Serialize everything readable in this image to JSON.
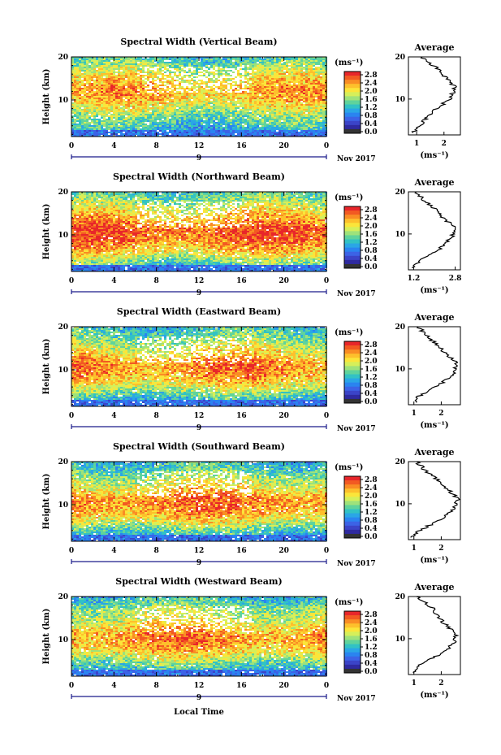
{
  "figure": {
    "date_label": "Nov 2017",
    "day_label": "9",
    "xlabel": "Local Time"
  },
  "colorbar": {
    "unit": "(ms⁻¹)",
    "ticks": [
      "2.8",
      "2.4",
      "2.0",
      "1.6",
      "1.2",
      "0.8",
      "0.4",
      "0.0"
    ],
    "colors": [
      "#e8262a",
      "#f25a22",
      "#f98d24",
      "#fdc02c",
      "#fbe53a",
      "#d6ef5a",
      "#9ee27b",
      "#5fd39c",
      "#32c2c4",
      "#2aa6e6",
      "#2a84f0",
      "#3c63e6",
      "#3b44c8",
      "#2f2aa0",
      "#333333"
    ]
  },
  "chart_data": [
    {
      "type": "heatmap",
      "title": "Spectral Width (Vertical Beam)",
      "ylabel": "Height (km)",
      "x_ticks": [
        "0",
        "4",
        "8",
        "12",
        "16",
        "20",
        "0"
      ],
      "xlim": [
        0,
        24
      ],
      "y_ticks": [
        "20",
        "10"
      ],
      "ylim": [
        1.5,
        20
      ],
      "colorbar_ticks": [
        2.8,
        2.4,
        2.0,
        1.6,
        1.2,
        0.8,
        0.4,
        0.0
      ],
      "profile": {
        "title": "Average",
        "xlabel": "(ms⁻¹)",
        "x_ticks": [
          "1",
          "2"
        ],
        "xlim": [
          0.7,
          2.6
        ],
        "heights": [
          2,
          3,
          4,
          5,
          6,
          7,
          8,
          9,
          10,
          11,
          12,
          13,
          14,
          15,
          16,
          17,
          18,
          19,
          20
        ],
        "values": [
          0.85,
          1.0,
          1.15,
          1.3,
          1.45,
          1.6,
          1.8,
          2.0,
          2.2,
          2.3,
          2.35,
          2.4,
          2.2,
          2.1,
          1.9,
          1.8,
          1.6,
          1.4,
          1.2
        ]
      }
    },
    {
      "type": "heatmap",
      "title": "Spectral Width (Northward Beam)",
      "ylabel": "Height (km)",
      "x_ticks": [
        "0",
        "4",
        "8",
        "12",
        "16",
        "20",
        "0"
      ],
      "xlim": [
        0,
        24
      ],
      "y_ticks": [
        "20",
        "10"
      ],
      "ylim": [
        1.5,
        20
      ],
      "colorbar_ticks": [
        2.8,
        2.4,
        2.0,
        1.6,
        1.2,
        0.8,
        0.4,
        0.0
      ],
      "profile": {
        "title": "Average",
        "xlabel": "(ms⁻¹)",
        "x_ticks": [
          "1.2",
          "2.8"
        ],
        "xlim": [
          1.0,
          3.0
        ],
        "heights": [
          2,
          3,
          4,
          5,
          6,
          7,
          8,
          9,
          10,
          11,
          12,
          13,
          14,
          15,
          16,
          17,
          18,
          19,
          20
        ],
        "values": [
          1.15,
          1.3,
          1.5,
          1.8,
          2.1,
          2.3,
          2.45,
          2.6,
          2.75,
          2.8,
          2.7,
          2.5,
          2.3,
          2.2,
          2.0,
          1.8,
          1.6,
          1.45,
          1.3
        ]
      }
    },
    {
      "type": "heatmap",
      "title": "Spectral Width (Eastward Beam)",
      "ylabel": "Height (km)",
      "x_ticks": [
        "0",
        "4",
        "8",
        "12",
        "16",
        "20",
        "0"
      ],
      "xlim": [
        0,
        24
      ],
      "y_ticks": [
        "20",
        "10"
      ],
      "ylim": [
        1.5,
        20
      ],
      "colorbar_ticks": [
        2.8,
        2.4,
        2.0,
        1.6,
        1.2,
        0.8,
        0.4,
        0.0
      ],
      "profile": {
        "title": "Average",
        "xlabel": "(ms⁻¹)",
        "x_ticks": [
          "1",
          "2"
        ],
        "xlim": [
          0.8,
          2.7
        ],
        "heights": [
          2,
          3,
          4,
          5,
          6,
          7,
          8,
          9,
          10,
          11,
          12,
          13,
          14,
          15,
          16,
          17,
          18,
          19,
          20
        ],
        "values": [
          1.0,
          1.1,
          1.3,
          1.6,
          1.9,
          2.1,
          2.3,
          2.45,
          2.5,
          2.55,
          2.5,
          2.3,
          2.1,
          1.95,
          1.8,
          1.6,
          1.45,
          1.3,
          1.15
        ]
      }
    },
    {
      "type": "heatmap",
      "title": "Spectral Width (Southward Beam)",
      "ylabel": "Height (km)",
      "x_ticks": [
        "0",
        "4",
        "8",
        "12",
        "16",
        "20",
        "0"
      ],
      "xlim": [
        0,
        24
      ],
      "y_ticks": [
        "20",
        "10"
      ],
      "ylim": [
        1.5,
        20
      ],
      "colorbar_ticks": [
        2.8,
        2.4,
        2.0,
        1.6,
        1.2,
        0.8,
        0.4,
        0.0
      ],
      "profile": {
        "title": "Average",
        "xlabel": "(ms⁻¹)",
        "x_ticks": [
          "1",
          "2"
        ],
        "xlim": [
          0.8,
          2.7
        ],
        "heights": [
          2,
          3,
          4,
          5,
          6,
          7,
          8,
          9,
          10,
          11,
          12,
          13,
          14,
          15,
          16,
          17,
          18,
          19,
          20
        ],
        "values": [
          0.95,
          1.1,
          1.3,
          1.6,
          1.9,
          2.15,
          2.35,
          2.5,
          2.55,
          2.6,
          2.5,
          2.3,
          2.1,
          1.95,
          1.8,
          1.6,
          1.4,
          1.25,
          1.1
        ]
      }
    },
    {
      "type": "heatmap",
      "title": "Spectral Width (Westward Beam)",
      "ylabel": "Height (km)",
      "x_ticks": [
        "0",
        "4",
        "8",
        "12",
        "16",
        "20",
        "0"
      ],
      "xlim": [
        0,
        24
      ],
      "y_ticks": [
        "20",
        "10"
      ],
      "ylim": [
        1.5,
        20
      ],
      "colorbar_ticks": [
        2.8,
        2.4,
        2.0,
        1.6,
        1.2,
        0.8,
        0.4,
        0.0
      ],
      "profile": {
        "title": "Average",
        "xlabel": "(ms⁻¹)",
        "x_ticks": [
          "1",
          "2"
        ],
        "xlim": [
          0.8,
          2.7
        ],
        "heights": [
          2,
          3,
          4,
          5,
          6,
          7,
          8,
          9,
          10,
          11,
          12,
          13,
          14,
          15,
          16,
          17,
          18,
          19,
          20
        ],
        "values": [
          0.95,
          1.1,
          1.3,
          1.55,
          1.85,
          2.1,
          2.3,
          2.45,
          2.5,
          2.55,
          2.4,
          2.2,
          2.05,
          1.9,
          1.8,
          1.75,
          1.5,
          1.3,
          1.1
        ]
      }
    }
  ]
}
